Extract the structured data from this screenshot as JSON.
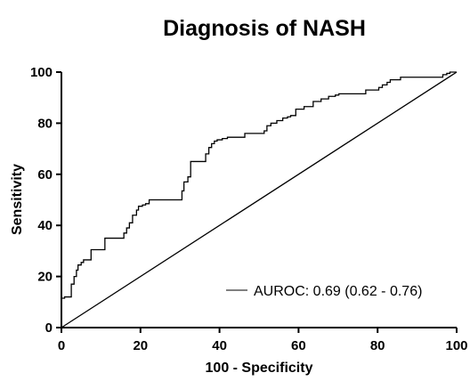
{
  "chart_data": {
    "type": "line",
    "title": "Diagnosis of NASH",
    "xlabel": "100 - Specificity",
    "ylabel": "Sensitivity",
    "xlim": [
      0,
      100
    ],
    "ylim": [
      0,
      100
    ],
    "xticks": [
      "0",
      "20",
      "40",
      "60",
      "80",
      "100"
    ],
    "yticks": [
      "0",
      "20",
      "40",
      "60",
      "80",
      "100"
    ],
    "grid": false,
    "legend_position": "bottom-right",
    "series": [
      {
        "name": "AUROC: 0.69 (0.62 - 0.76)",
        "style": "step",
        "x": [
          0,
          0.8,
          2.5,
          3.2,
          3.8,
          4.2,
          5.0,
          5.6,
          6.4,
          7.5,
          9.8,
          11.0,
          15.8,
          16.5,
          17.2,
          18.0,
          19.0,
          19.5,
          20.5,
          21.3,
          22.2,
          30.5,
          31.0,
          32.0,
          32.7,
          34.8,
          35.6,
          36.5,
          37.3,
          38.0,
          38.7,
          39.4,
          40.7,
          42.0,
          43.4,
          46.4,
          51.3,
          52.0,
          53.0,
          54.5,
          56.0,
          57.2,
          58.0,
          59.3,
          61.4,
          63.7,
          65.7,
          67.6,
          69.3,
          70.2,
          73.2,
          77.0,
          80.3,
          81.2,
          82.4,
          83.2,
          85.8,
          96.5,
          97.5,
          98.3,
          100
        ],
        "y": [
          0,
          11.5,
          12.0,
          17.0,
          20.0,
          22.5,
          24.5,
          25.5,
          26.5,
          26.5,
          30.5,
          30.5,
          35.0,
          37.0,
          39.0,
          41.0,
          44.0,
          46.0,
          47.5,
          48.0,
          48.5,
          50.0,
          53.5,
          57.0,
          59.0,
          65.0,
          65.0,
          65.0,
          68.0,
          70.5,
          72.0,
          73.0,
          73.5,
          74.0,
          74.5,
          74.5,
          76.0,
          77.0,
          79.0,
          80.0,
          81.0,
          82.0,
          82.5,
          83.0,
          85.5,
          86.5,
          88.5,
          89.5,
          90.5,
          91.0,
          91.5,
          91.5,
          93.0,
          94.0,
          95.0,
          96.0,
          97.0,
          98.0,
          99.0,
          99.5,
          100
        ]
      },
      {
        "name": "",
        "style": "line",
        "x": [
          0,
          100
        ],
        "y": [
          0,
          100
        ]
      }
    ]
  }
}
